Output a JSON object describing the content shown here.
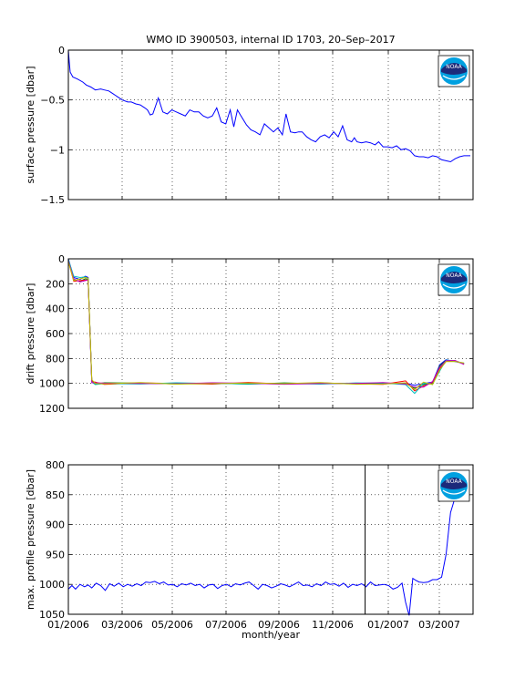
{
  "title": "WMO ID 3900503, internal ID 1703, 20–Sep–2017",
  "xlabel": "month/year",
  "x_tick_labels": [
    "01/2006",
    "03/2006",
    "05/2006",
    "07/2006",
    "09/2006",
    "11/2006",
    "01/2007",
    "03/2007"
  ],
  "logo_text": "NOAA",
  "chart_data": [
    {
      "type": "line",
      "ylabel": "surface pressure [dbar]",
      "ylim": [
        -1.5,
        0
      ],
      "y_reversed": false,
      "grid": true,
      "ytick_values": [
        0,
        -0.5,
        -1,
        -1.5
      ],
      "ytick_labels": [
        "0",
        "−0.5",
        "−1",
        "−1.5"
      ],
      "xlim": [
        0,
        450
      ],
      "series": [
        {
          "color": "#0000ff",
          "x": [
            0,
            1,
            2,
            5,
            10,
            16,
            20,
            25,
            30,
            36,
            40,
            45,
            50,
            55,
            60,
            66,
            70,
            75,
            80,
            85,
            88,
            91,
            94,
            100,
            105,
            110,
            115,
            120,
            125,
            130,
            135,
            140,
            145,
            150,
            155,
            160,
            165,
            170,
            175,
            180,
            184,
            188,
            192,
            198,
            203,
            208,
            213,
            218,
            223,
            228,
            233,
            238,
            242,
            247,
            252,
            256,
            260,
            265,
            270,
            275,
            280,
            285,
            290,
            295,
            300,
            305,
            310,
            315,
            318,
            321,
            326,
            331,
            336,
            341,
            345,
            350,
            355,
            360,
            365,
            370,
            375,
            380,
            385,
            390,
            395,
            400,
            405,
            410,
            415,
            420,
            425,
            430,
            435,
            440,
            447
          ],
          "y": [
            0,
            -0.12,
            -0.22,
            -0.27,
            -0.29,
            -0.32,
            -0.35,
            -0.37,
            -0.4,
            -0.39,
            -0.4,
            -0.41,
            -0.44,
            -0.47,
            -0.5,
            -0.52,
            -0.52,
            -0.54,
            -0.55,
            -0.58,
            -0.6,
            -0.65,
            -0.64,
            -0.48,
            -0.62,
            -0.64,
            -0.6,
            -0.62,
            -0.64,
            -0.66,
            -0.6,
            -0.62,
            -0.62,
            -0.66,
            -0.68,
            -0.66,
            -0.58,
            -0.72,
            -0.74,
            -0.6,
            -0.77,
            -0.6,
            -0.66,
            -0.75,
            -0.8,
            -0.82,
            -0.85,
            -0.74,
            -0.78,
            -0.82,
            -0.78,
            -0.85,
            -0.64,
            -0.82,
            -0.83,
            -0.82,
            -0.82,
            -0.87,
            -0.9,
            -0.92,
            -0.87,
            -0.85,
            -0.88,
            -0.82,
            -0.87,
            -0.76,
            -0.9,
            -0.92,
            -0.88,
            -0.92,
            -0.93,
            -0.92,
            -0.93,
            -0.95,
            -0.92,
            -0.97,
            -0.97,
            -0.98,
            -0.96,
            -1.0,
            -0.99,
            -1.01,
            -1.06,
            -1.07,
            -1.07,
            -1.08,
            -1.06,
            -1.07,
            -1.1,
            -1.11,
            -1.12,
            -1.09,
            -1.07,
            -1.06,
            -1.06
          ]
        }
      ]
    },
    {
      "type": "line",
      "ylabel": "drift pressure [dbar]",
      "ylim": [
        1200,
        0
      ],
      "y_reversed": true,
      "grid": true,
      "ytick_values": [
        0,
        200,
        400,
        600,
        800,
        1000,
        1200
      ],
      "ytick_labels": [
        "0",
        "200",
        "400",
        "600",
        "800",
        "1000",
        "1200"
      ],
      "xlim": [
        0,
        450
      ],
      "series": [
        {
          "color": "#0000ff",
          "x": [
            0,
            6,
            13,
            19,
            22,
            26,
            30,
            40,
            80,
            120,
            160,
            200,
            240,
            280,
            320,
            350,
            375,
            385,
            395,
            405,
            413,
            420,
            430,
            440
          ],
          "y": [
            0,
            150,
            165,
            140,
            150,
            980,
            1000,
            1000,
            1002,
            998,
            1003,
            1000,
            1004,
            998,
            1002,
            1000,
            998,
            1015,
            1002,
            990,
            850,
            810,
            825,
            840
          ]
        },
        {
          "color": "#008000",
          "x": [
            0,
            6,
            13,
            19,
            22,
            26,
            30,
            40,
            80,
            120,
            160,
            200,
            240,
            280,
            320,
            350,
            375,
            385,
            395,
            405,
            413,
            420,
            430,
            440
          ],
          "y": [
            10,
            170,
            180,
            160,
            165,
            975,
            1005,
            995,
            998,
            1004,
            997,
            1006,
            996,
            1003,
            999,
            1003,
            1002,
            1040,
            1010,
            1000,
            860,
            815,
            820,
            842
          ]
        },
        {
          "color": "#ff0000",
          "x": [
            0,
            6,
            13,
            19,
            22,
            26,
            30,
            40,
            80,
            120,
            160,
            200,
            240,
            280,
            320,
            350,
            375,
            385,
            395,
            405,
            413,
            420,
            430,
            440
          ],
          "y": [
            20,
            180,
            175,
            170,
            172,
            985,
            990,
            1008,
            996,
            1000,
            1006,
            992,
            1005,
            996,
            1004,
            1008,
            980,
            1060,
            1020,
            995,
            880,
            820,
            818,
            845
          ]
        },
        {
          "color": "#00bfbf",
          "x": [
            0,
            6,
            13,
            19,
            22,
            26,
            30,
            40,
            80,
            120,
            160,
            200,
            240,
            280,
            320,
            350,
            375,
            385,
            395,
            405,
            413,
            420,
            430,
            440
          ],
          "y": [
            5,
            140,
            150,
            145,
            160,
            990,
            1010,
            1002,
            1005,
            995,
            1000,
            1004,
            1000,
            1006,
            996,
            998,
            1010,
            1080,
            1000,
            1005,
            900,
            812,
            822,
            838
          ]
        },
        {
          "color": "#bf00bf",
          "x": [
            0,
            6,
            13,
            19,
            22,
            26,
            30,
            40,
            80,
            120,
            160,
            200,
            240,
            280,
            320,
            350,
            375,
            385,
            395,
            405,
            413,
            420,
            430,
            440
          ],
          "y": [
            15,
            160,
            185,
            175,
            168,
            995,
            995,
            998,
            1001,
            1003,
            995,
            999,
            1007,
            1001,
            1000,
            994,
            1005,
            1030,
            1030,
            985,
            870,
            818,
            816,
            848
          ]
        },
        {
          "color": "#bfbf00",
          "x": [
            0,
            6,
            13,
            19,
            22,
            26,
            30,
            40,
            80,
            120,
            160,
            200,
            240,
            280,
            320,
            350,
            375,
            385,
            395,
            405,
            413,
            420,
            430,
            440
          ],
          "y": [
            25,
            175,
            160,
            150,
            155,
            970,
            1000,
            1004,
            994,
            1006,
            1002,
            997,
            1002,
            994,
            1007,
            1005,
            995,
            1050,
            990,
            1010,
            890,
            825,
            824,
            836
          ]
        }
      ]
    },
    {
      "type": "line",
      "ylabel": "max. profile pressure [dbar]",
      "ylim": [
        1050,
        800
      ],
      "y_reversed": true,
      "grid": true,
      "ytick_values": [
        800,
        850,
        900,
        950,
        1000,
        1050
      ],
      "ytick_labels": [
        "800",
        "850",
        "900",
        "950",
        "1000",
        "1050"
      ],
      "xlim": [
        0,
        450
      ],
      "vline_x": 330,
      "series": [
        {
          "color": "#0000ff",
          "x": [
            0,
            4,
            8,
            13,
            18,
            22,
            26,
            31,
            36,
            41,
            46,
            51,
            56,
            61,
            66,
            71,
            76,
            81,
            86,
            91,
            96,
            101,
            106,
            111,
            116,
            121,
            126,
            131,
            136,
            141,
            146,
            151,
            156,
            161,
            166,
            171,
            176,
            181,
            186,
            191,
            196,
            201,
            206,
            211,
            216,
            221,
            226,
            231,
            236,
            241,
            246,
            251,
            256,
            261,
            266,
            271,
            276,
            281,
            286,
            291,
            296,
            301,
            306,
            311,
            316,
            321,
            326,
            331,
            336,
            341,
            346,
            351,
            356,
            361,
            366,
            371,
            375,
            379,
            383,
            386,
            390,
            395,
            400,
            405,
            410,
            415,
            420,
            425,
            432,
            440
          ],
          "y": [
            1008,
            1002,
            1008,
            1000,
            1004,
            1001,
            1006,
            998,
            1002,
            1010,
            999,
            1003,
            998,
            1004,
            1000,
            1003,
            999,
            1002,
            996,
            997,
            995,
            999,
            996,
            1001,
            1000,
            1004,
            999,
            1001,
            998,
            1002,
            1000,
            1006,
            1001,
            1000,
            1007,
            1002,
            1000,
            1004,
            999,
            1001,
            998,
            996,
            1002,
            1008,
            1000,
            1002,
            1006,
            1003,
            999,
            1001,
            1004,
            1000,
            996,
            1002,
            1001,
            1004,
            999,
            1002,
            996,
            1000,
            999,
            1003,
            998,
            1005,
            1000,
            1002,
            999,
            1004,
            996,
            1002,
            1001,
            1000,
            1002,
            1008,
            1005,
            998,
            1030,
            1052,
            990,
            993,
            996,
            997,
            996,
            992,
            992,
            988,
            950,
            880,
            845,
            840
          ]
        }
      ]
    }
  ]
}
